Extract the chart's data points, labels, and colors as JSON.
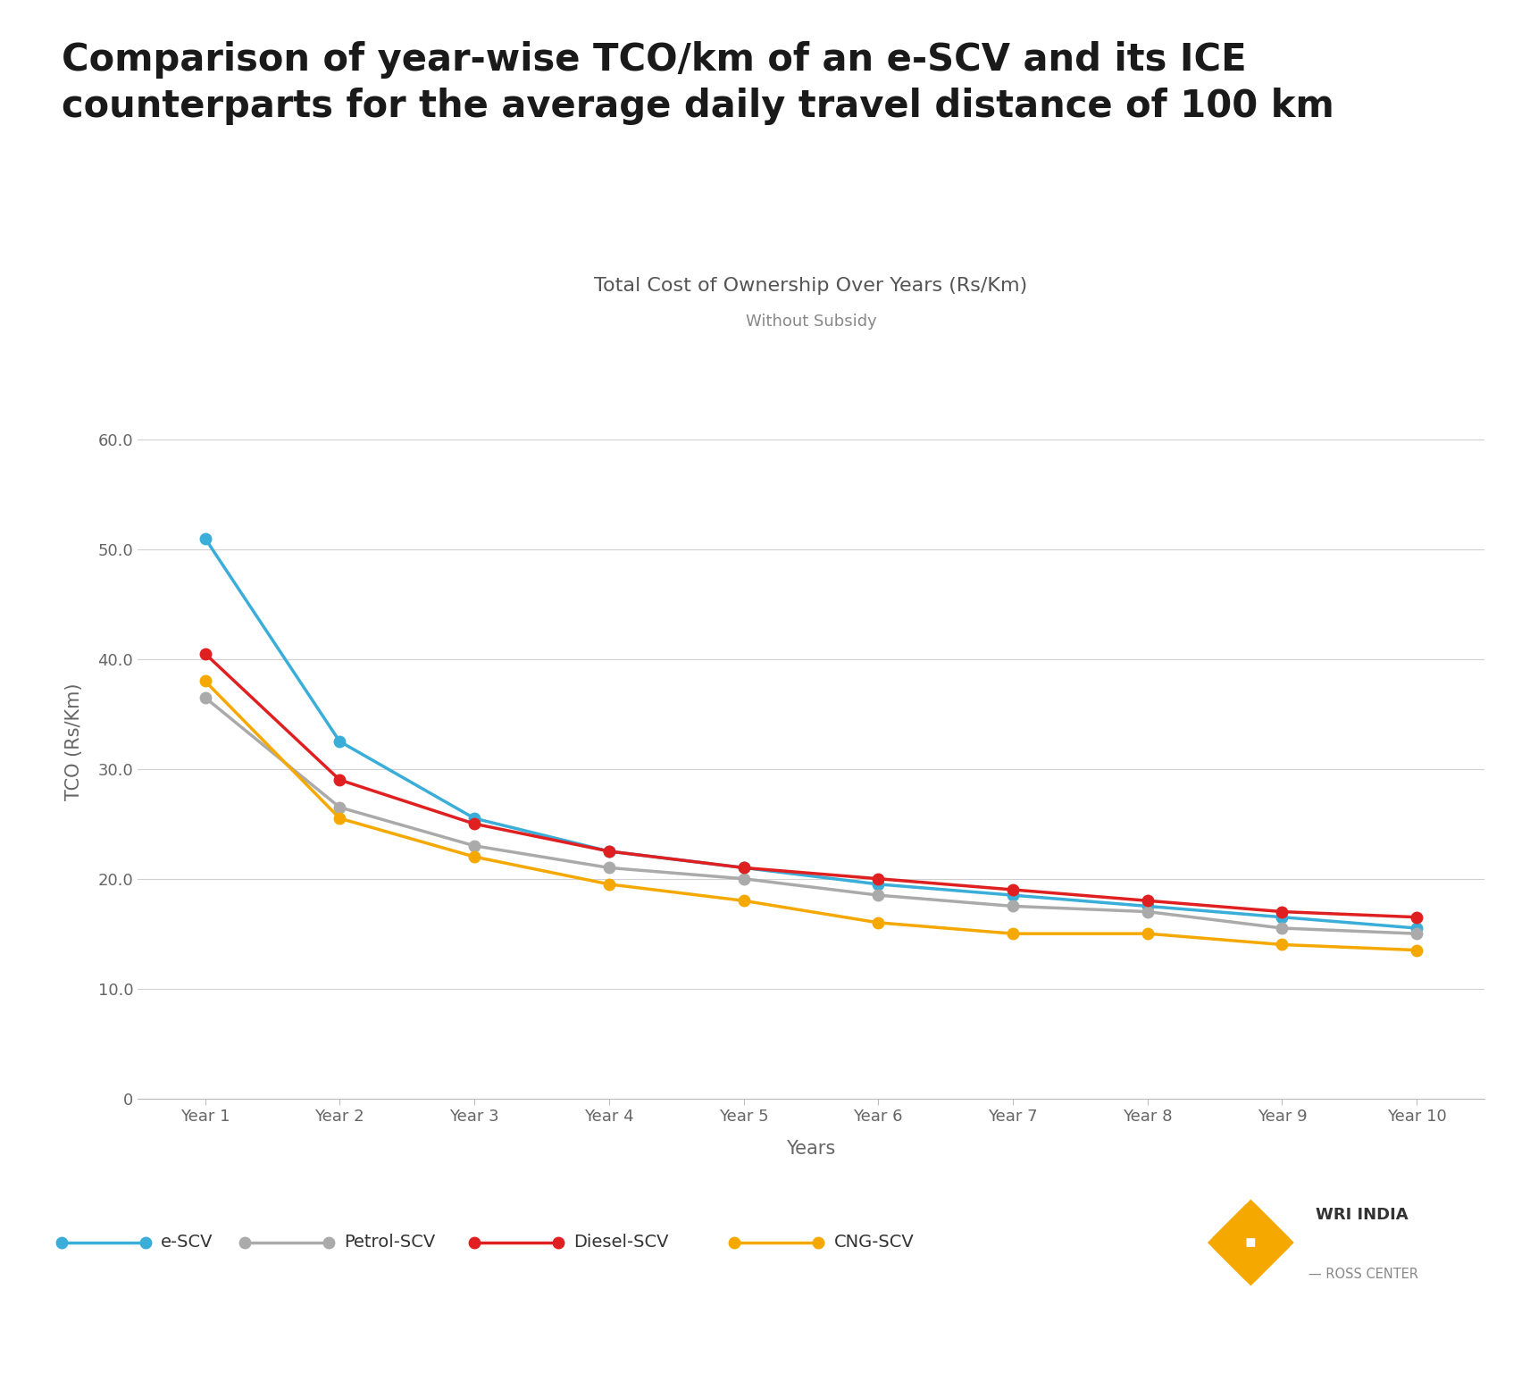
{
  "title_line1": "Comparison of year-wise TCO/km of an e-SCV and its ICE",
  "title_line2": "counterparts for the average daily travel distance of 100 km",
  "chart_title": "Total Cost of Ownership Over Years (Rs/Km)",
  "chart_subtitle": "Without Subsidy",
  "xlabel": "Years",
  "ylabel": "TCO (Rs/Km)",
  "years": [
    "Year 1",
    "Year 2",
    "Year 3",
    "Year 4",
    "Year 5",
    "Year 6",
    "Year 7",
    "Year 8",
    "Year 9",
    "Year 10"
  ],
  "e_scv": [
    51.0,
    32.5,
    25.5,
    22.5,
    21.0,
    19.5,
    18.5,
    17.5,
    16.5,
    15.5
  ],
  "petrol_scv": [
    36.5,
    26.5,
    23.0,
    21.0,
    20.0,
    18.5,
    17.5,
    17.0,
    15.5,
    15.0
  ],
  "diesel_scv": [
    40.5,
    29.0,
    25.0,
    22.5,
    21.0,
    20.0,
    19.0,
    18.0,
    17.0,
    16.5
  ],
  "cng_scv": [
    38.0,
    25.5,
    22.0,
    19.5,
    18.0,
    16.0,
    15.0,
    15.0,
    14.0,
    13.5
  ],
  "color_escv": "#3aaed8",
  "color_petrol": "#aaaaaa",
  "color_diesel": "#e02020",
  "color_cng": "#f5a800",
  "ylim_min": 0,
  "ylim_max": 65,
  "yticks": [
    0,
    10.0,
    20.0,
    30.0,
    40.0,
    50.0,
    60.0
  ],
  "background": "#ffffff",
  "grid_color": "#d0d0d0",
  "title_fontsize": 30,
  "chart_title_fontsize": 16,
  "chart_subtitle_fontsize": 13,
  "axis_label_fontsize": 15,
  "tick_fontsize": 13,
  "legend_fontsize": 14,
  "line_width": 2.5,
  "marker_size": 9
}
